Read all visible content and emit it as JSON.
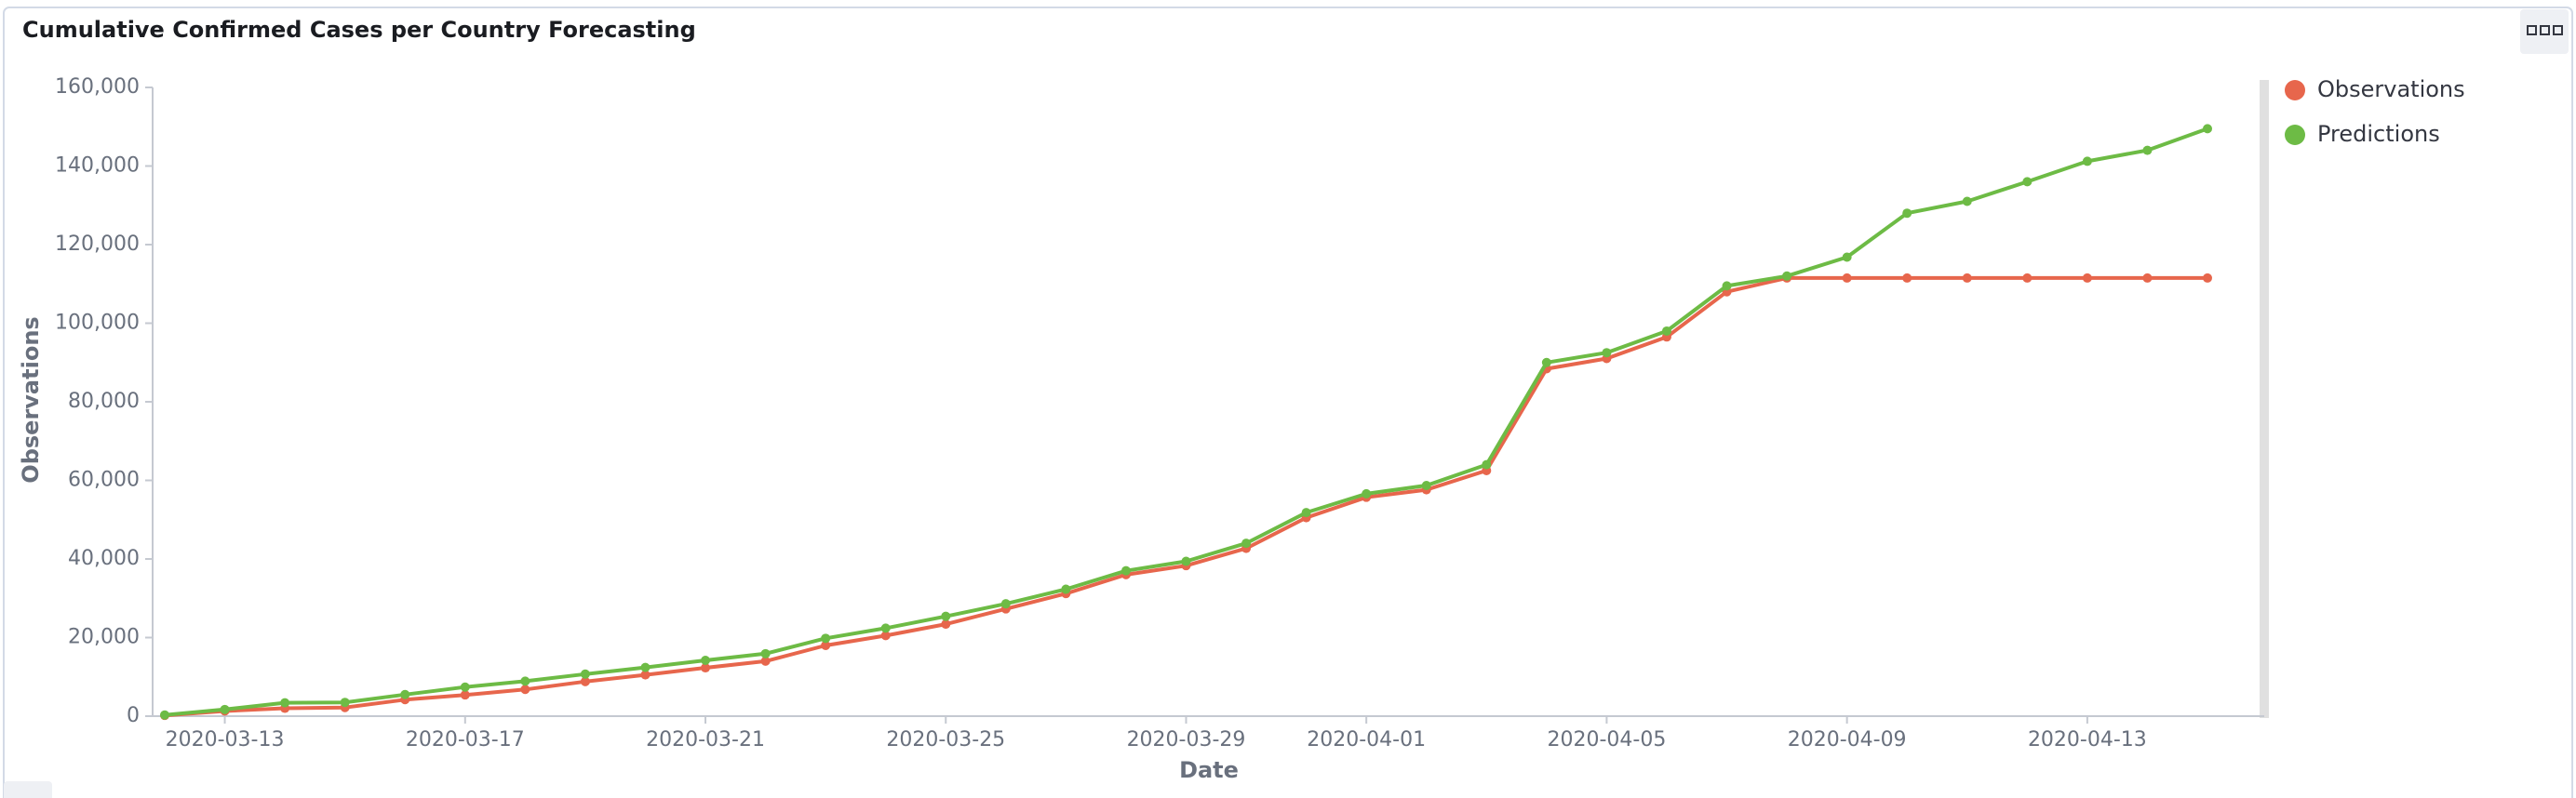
{
  "chart_data": {
    "type": "line",
    "title": "Cumulative Confirmed Cases per Country Forecasting",
    "x_label": "Date",
    "y_label": "Observations",
    "x": [
      "2020-03-12",
      "2020-03-13",
      "2020-03-14",
      "2020-03-15",
      "2020-03-16",
      "2020-03-17",
      "2020-03-18",
      "2020-03-19",
      "2020-03-20",
      "2020-03-21",
      "2020-03-22",
      "2020-03-23",
      "2020-03-24",
      "2020-03-25",
      "2020-03-26",
      "2020-03-27",
      "2020-03-28",
      "2020-03-29",
      "2020-03-30",
      "2020-03-31",
      "2020-04-01",
      "2020-04-02",
      "2020-04-03",
      "2020-04-04",
      "2020-04-05",
      "2020-04-06",
      "2020-04-07",
      "2020-04-08",
      "2020-04-09",
      "2020-04-10",
      "2020-04-11",
      "2020-04-12",
      "2020-04-13",
      "2020-04-14",
      "2020-04-15"
    ],
    "series": [
      {
        "name": "Observations",
        "color": "#e7664c",
        "values": [
          200,
          1300,
          2000,
          2200,
          4200,
          5400,
          6800,
          8800,
          10500,
          12300,
          14000,
          18000,
          20500,
          23400,
          27300,
          31200,
          36000,
          38300,
          42700,
          50500,
          55700,
          57600,
          62500,
          88400,
          91000,
          96500,
          108000,
          111500,
          111500,
          111500,
          111500,
          111500,
          111500,
          111500,
          111500
        ]
      },
      {
        "name": "Predictions",
        "color": "#6dbb45",
        "values": [
          300,
          1700,
          3400,
          3500,
          5500,
          7400,
          8900,
          10700,
          12400,
          14200,
          15900,
          19800,
          22400,
          25400,
          28600,
          32300,
          37000,
          39400,
          44000,
          51800,
          56600,
          58700,
          64000,
          90000,
          92500,
          98000,
          109500,
          112000,
          116800,
          128000,
          131000,
          136000,
          141200,
          144000,
          149500
        ]
      }
    ],
    "xlim": [
      "2020-03-12",
      "2020-04-15"
    ],
    "xticks": [
      "2020-03-13",
      "2020-03-17",
      "2020-03-21",
      "2020-03-25",
      "2020-03-29",
      "2020-04-01",
      "2020-04-05",
      "2020-04-09",
      "2020-04-13"
    ],
    "ylim": [
      0,
      160000
    ],
    "yticks": [
      0,
      {
        "value": 20000,
        "label": "20,000"
      },
      {
        "value": 40000,
        "label": "40,000"
      },
      {
        "value": 60000,
        "label": "60,000"
      },
      {
        "value": 80000,
        "label": "80,000"
      },
      {
        "value": 100000,
        "label": "100,000"
      },
      {
        "value": 120000,
        "label": "120,000"
      },
      {
        "value": 140000,
        "label": "140,000"
      },
      {
        "value": 160000,
        "label": "160,000"
      }
    ],
    "legend": "top-right"
  }
}
